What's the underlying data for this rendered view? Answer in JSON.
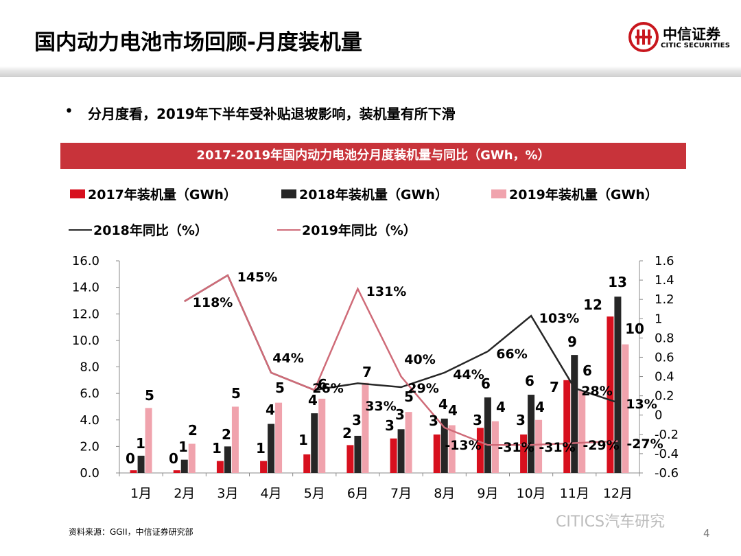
{
  "header": {
    "title": "国内动力电池市场回顾-月度装机量",
    "logo_cn": "中信证券",
    "logo_en": "CITIC SECURITIES"
  },
  "bullet": {
    "marker": "•",
    "text": "分月度看，2019年下半年受补贴退坡影响，装机量有所下滑"
  },
  "banner": {
    "title": "2017-2019年国内动力电池分月度装机量与同比（GWh，%）"
  },
  "legend": {
    "s2017": "2017年装机量（GWh）",
    "s2018": "2018年装机量（GWh）",
    "s2019": "2019年装机量（GWh）",
    "l2018": "2018年同比（%）",
    "l2019": "2019年同比（%）"
  },
  "colors": {
    "s2017": "#d7101e",
    "s2018": "#262626",
    "s2019": "#f0a3ad",
    "l2018": "#262626",
    "l2019": "#cf6b78",
    "banner": "#c8333a",
    "axis": "#888888"
  },
  "chart_data": {
    "type": "bar",
    "categories": [
      "1月",
      "2月",
      "3月",
      "4月",
      "5月",
      "6月",
      "7月",
      "8月",
      "9月",
      "10月",
      "11月",
      "12月"
    ],
    "series": [
      {
        "name": "2017年装机量（GWh）",
        "type": "bar",
        "axis": "left",
        "values": [
          0.2,
          0.2,
          0.9,
          0.9,
          1.4,
          2.1,
          2.6,
          2.9,
          3.4,
          2.9,
          7.0,
          11.8
        ],
        "labels": [
          "0",
          "0",
          "1",
          "1",
          "1",
          "2",
          "3",
          "3",
          "3",
          "3",
          "7",
          "12"
        ]
      },
      {
        "name": "2018年装机量（GWh）",
        "type": "bar",
        "axis": "left",
        "values": [
          1.3,
          1.0,
          2.0,
          3.7,
          4.5,
          2.8,
          3.3,
          4.1,
          5.7,
          5.9,
          8.9,
          13.3
        ],
        "labels": [
          "1",
          "1",
          "2",
          "4",
          "4",
          "3",
          "3",
          "4",
          "6",
          "6",
          "9",
          "13"
        ]
      },
      {
        "name": "2019年装机量（GWh）",
        "type": "bar",
        "axis": "left",
        "values": [
          4.9,
          2.2,
          5.0,
          5.3,
          5.6,
          6.8,
          4.6,
          3.6,
          3.9,
          4.0,
          6.2,
          9.7
        ],
        "labels": [
          "5",
          "2",
          "5",
          "5",
          "6",
          "7",
          "5",
          "4",
          "4",
          "4",
          "6",
          "10"
        ]
      },
      {
        "name": "2018年同比（%）",
        "type": "line",
        "axis": "right",
        "values": [
          null,
          1.18,
          1.45,
          0.44,
          0.26,
          0.33,
          0.29,
          0.44,
          0.66,
          1.03,
          0.28,
          0.13
        ],
        "labels": [
          "",
          "118%",
          "145%",
          "44%",
          "26%",
          "33%",
          "29%",
          "44%",
          "66%",
          "103%",
          "28%",
          "13%"
        ]
      },
      {
        "name": "2019年同比（%）",
        "type": "line",
        "axis": "right",
        "values": [
          null,
          1.18,
          1.45,
          0.44,
          0.26,
          1.31,
          0.4,
          -0.13,
          -0.31,
          -0.31,
          -0.29,
          -0.27
        ],
        "labels": [
          "",
          "",
          "",
          "",
          "",
          "131%",
          "40%",
          "-13%",
          "-31%",
          "-31%",
          "-29%",
          "-27%"
        ]
      }
    ],
    "y_left": {
      "min": 0,
      "max": 16,
      "ticks": [
        "0.0",
        "2.0",
        "4.0",
        "6.0",
        "8.0",
        "10.0",
        "12.0",
        "14.0",
        "16.0"
      ]
    },
    "y_right": {
      "min": -0.6,
      "max": 1.6,
      "ticks": [
        "-0.6",
        "-0.4",
        "-0.2",
        "0",
        "0.2",
        "0.4",
        "0.6",
        "0.8",
        "1",
        "1.2",
        "1.4",
        "1.6"
      ]
    },
    "grid": false,
    "legend_position": "top"
  },
  "footer": {
    "source": "资料来源：GGII，中信证券研究部",
    "watermark": "CITICS汽车研究",
    "page_number": "4"
  }
}
